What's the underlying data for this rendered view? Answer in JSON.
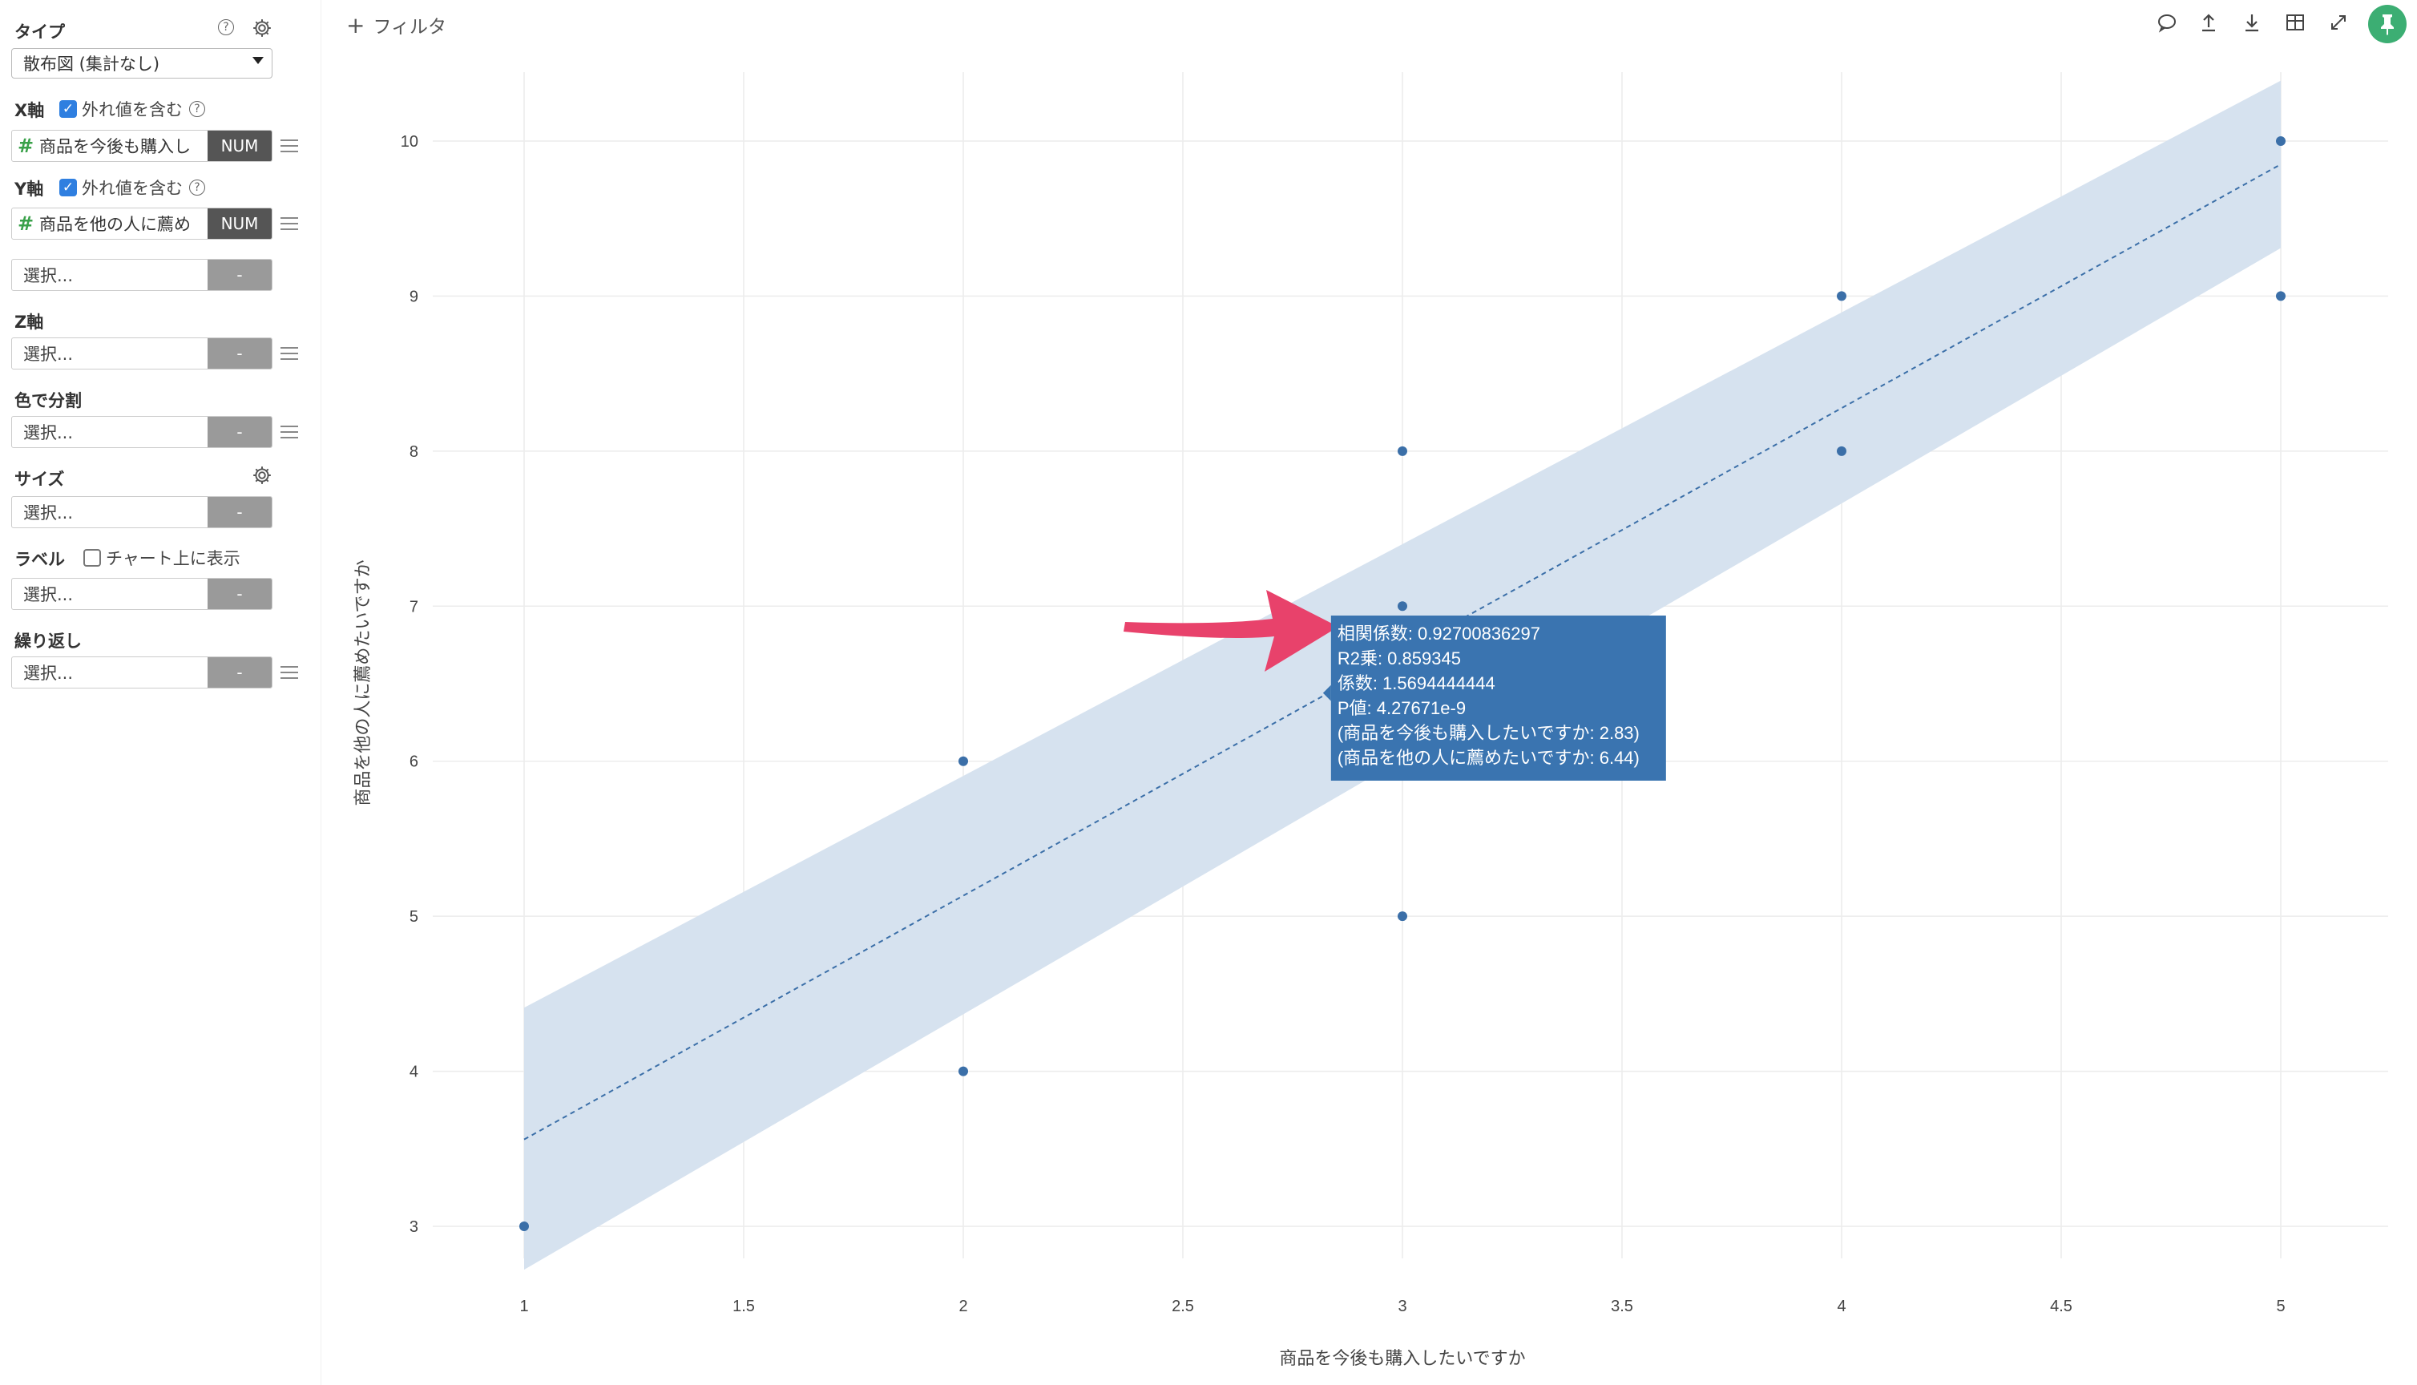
{
  "sidebar": {
    "type_label": "タイプ",
    "type_value": "散布図 (集計なし)",
    "x_label": "X軸",
    "x_outlier": "外れ値を含む",
    "x_field": "商品を今後も購入し",
    "x_field_type": "NUM",
    "y_label": "Y軸",
    "y_outlier": "外れ値を含む",
    "y_field": "商品を他の人に薦め",
    "y_field_type": "NUM",
    "extra_select": "選択...",
    "extra_btn": "-",
    "z_label": "Z軸",
    "z_select": "選択...",
    "z_btn": "-",
    "color_label": "色で分割",
    "color_select": "選択...",
    "color_btn": "-",
    "size_label": "サイズ",
    "size_select": "選択...",
    "size_btn": "-",
    "label_label": "ラベル",
    "label_show": "チャート上に表示",
    "label_select": "選択...",
    "label_btn": "-",
    "repeat_label": "繰り返し",
    "repeat_select": "選択...",
    "repeat_btn": "-",
    "help_glyph": "?"
  },
  "topbar": {
    "filter_label": "フィルタ",
    "tools": [
      "comment-icon",
      "upload-icon",
      "download-icon",
      "table-icon",
      "expand-icon",
      "pin-icon"
    ]
  },
  "colors": {
    "point": "#3b6fa8",
    "band": "#d6e2ef",
    "trend": "#3b6fa8",
    "tooltip_bg": "#3a74b0",
    "arrow": "#e8426b",
    "pin": "#3cae73"
  },
  "chart_data": {
    "type": "scatter",
    "xlabel": "商品を今後も購入したいですか",
    "ylabel": "商品を他の人に薦めたいですか",
    "xlim": [
      1,
      5
    ],
    "ylim": [
      3,
      10
    ],
    "x_ticks": [
      1,
      1.5,
      2,
      2.5,
      3,
      3.5,
      4,
      4.5,
      5
    ],
    "y_ticks": [
      3,
      4,
      5,
      6,
      7,
      8,
      9,
      10
    ],
    "points": [
      {
        "x": 1,
        "y": 3
      },
      {
        "x": 2,
        "y": 4
      },
      {
        "x": 2,
        "y": 6
      },
      {
        "x": 3,
        "y": 5
      },
      {
        "x": 3,
        "y": 7
      },
      {
        "x": 3,
        "y": 8
      },
      {
        "x": 4,
        "y": 8
      },
      {
        "x": 4,
        "y": 9
      },
      {
        "x": 5,
        "y": 9
      },
      {
        "x": 5,
        "y": 10
      }
    ],
    "trend_line": {
      "x": [
        1,
        5
      ],
      "y": [
        3.56,
        9.85
      ]
    },
    "confidence_band": {
      "x": [
        1,
        5
      ],
      "upper": [
        4.41,
        10.39
      ],
      "lower": [
        2.72,
        9.31
      ]
    },
    "grid": true,
    "tooltip": {
      "x": 2.83,
      "y": 6.44,
      "lines": [
        "相関係数: 0.92700836297",
        "R2乗: 0.859345",
        "係数: 1.5694444444",
        "P値: 4.27671e-9",
        "(商品を今後も購入したいですか: 2.83)",
        "(商品を他の人に薦めたいですか: 6.44)"
      ]
    }
  }
}
